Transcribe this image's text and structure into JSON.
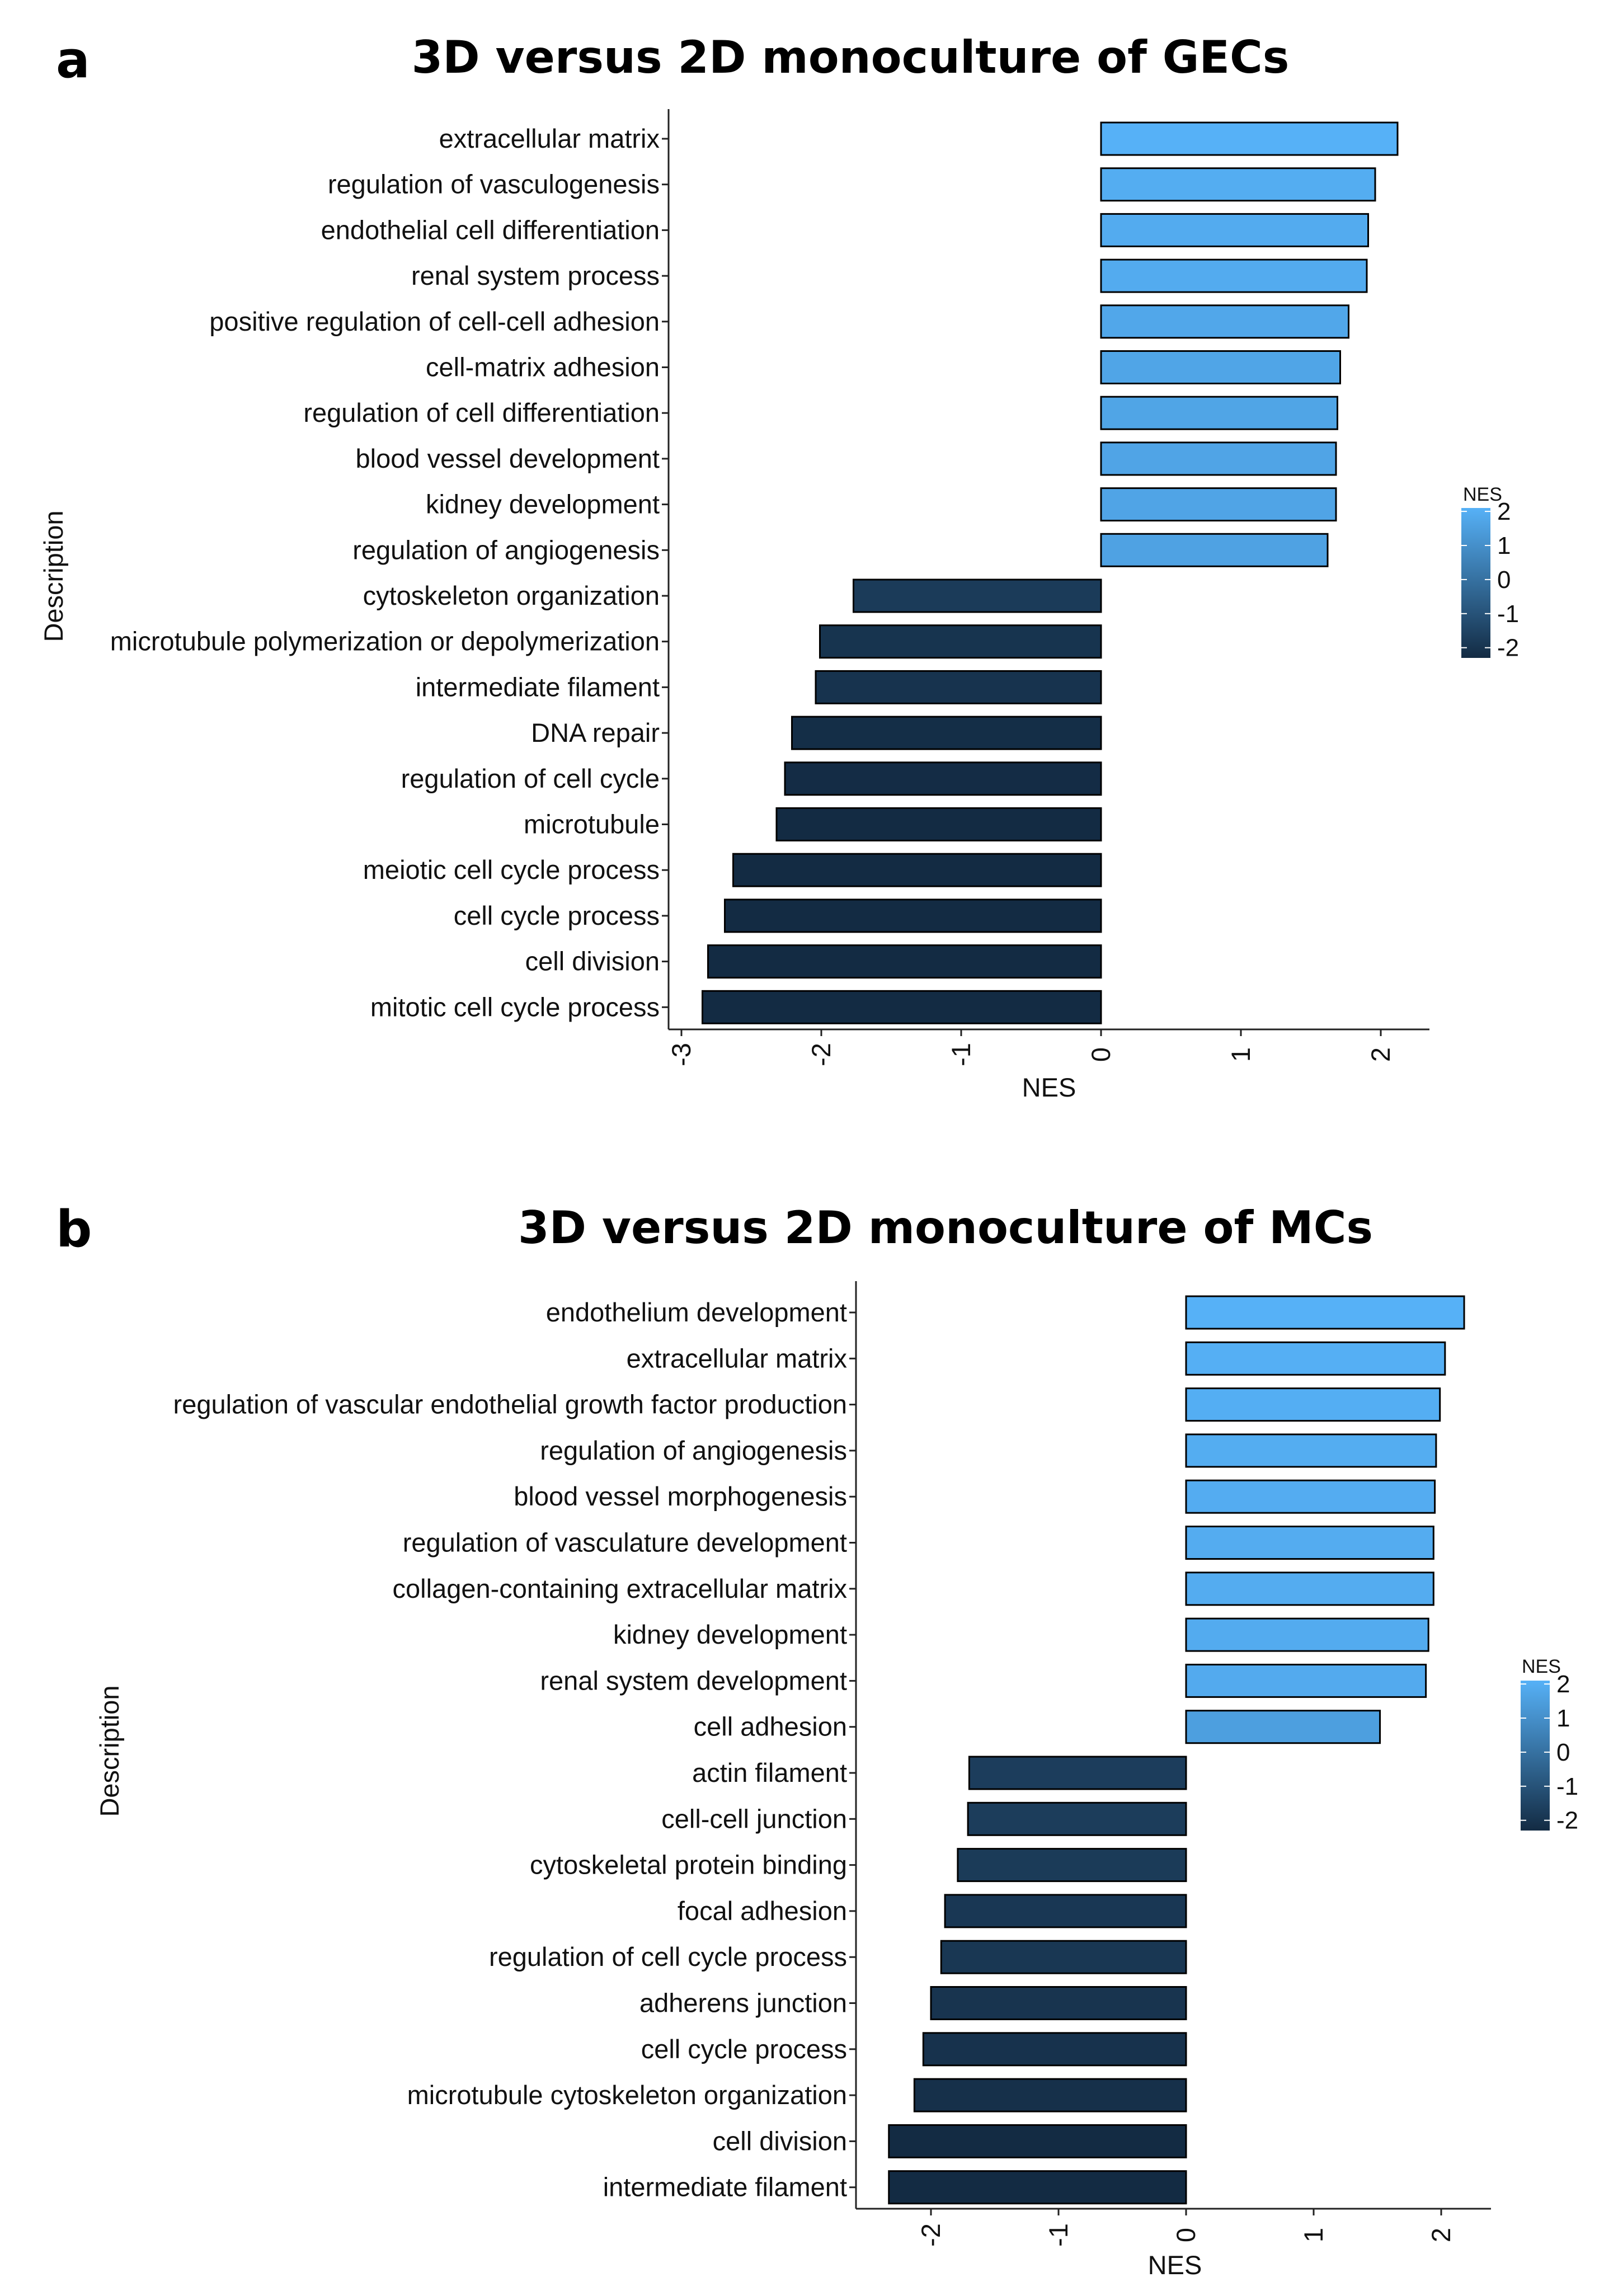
{
  "chart_data": [
    {
      "type": "bar",
      "orientation": "horizontal",
      "panel_label": "a",
      "title": "3D versus 2D monoculture of GECs",
      "xlabel": "NES",
      "ylabel": "Description",
      "xlim": [
        -3.2,
        2.35
      ],
      "xticks": [
        -3,
        -2,
        -1,
        0,
        1,
        2
      ],
      "xtick_labels": [
        "-3",
        "-2",
        "-1",
        "0",
        "1",
        "2"
      ],
      "grid": false,
      "categories": [
        "extracellular matrix",
        "regulation of vasculogenesis",
        "endothelial cell differentiation",
        "renal system process",
        "positive regulation of cell-cell adhesion",
        "cell-matrix adhesion",
        "regulation of cell differentiation",
        "blood vessel development",
        "kidney development",
        "regulation of angiogenesis",
        "cytoskeleton organization",
        "microtubule polymerization or depolymerization",
        "intermediate filament",
        "DNA repair",
        "regulation of cell cycle",
        "microtubule",
        "meiotic cell cycle process",
        "cell cycle process",
        "cell division",
        "mitotic cell cycle process"
      ],
      "values": [
        2.12,
        1.96,
        1.91,
        1.9,
        1.77,
        1.71,
        1.69,
        1.68,
        1.68,
        1.62,
        -1.77,
        -2.01,
        -2.04,
        -2.21,
        -2.26,
        -2.32,
        -2.63,
        -2.69,
        -2.81,
        -2.85
      ],
      "legend": {
        "title": "NES",
        "labels": [
          "2",
          "1",
          "0",
          "-1",
          "-2"
        ],
        "range": [
          -2.3,
          2.1
        ],
        "position": "right",
        "color_low": "#132b43",
        "color_high": "#56b1f7"
      }
    },
    {
      "type": "bar",
      "orientation": "horizontal",
      "panel_label": "b",
      "title": "3D versus 2D monoculture of MCs",
      "xlabel": "NES",
      "ylabel": "Description",
      "xlim": [
        -2.6,
        2.4
      ],
      "xticks": [
        -2,
        -1,
        0,
        1,
        2
      ],
      "xtick_labels": [
        "-2",
        "-1",
        "0",
        "1",
        "2"
      ],
      "grid": false,
      "categories": [
        "endothelium development",
        "extracellular matrix",
        "regulation of vascular endothelial growth factor production",
        "regulation of angiogenesis",
        "blood vessel morphogenesis",
        "regulation of vasculature development",
        "collagen-containing extracellular matrix",
        "kidney development",
        "renal system development",
        "cell adhesion",
        "actin filament",
        "cell-cell junction",
        "cytoskeletal protein binding",
        "focal adhesion",
        "regulation of cell cycle process",
        "adherens junction",
        "cell cycle process",
        "microtubule cytoskeleton organization",
        "cell division",
        "intermediate filament"
      ],
      "values": [
        2.18,
        2.03,
        1.99,
        1.96,
        1.95,
        1.94,
        1.94,
        1.9,
        1.88,
        1.52,
        -1.7,
        -1.71,
        -1.79,
        -1.89,
        -1.92,
        -2.0,
        -2.06,
        -2.13,
        -2.33,
        -2.33
      ],
      "legend": {
        "title": "NES",
        "labels": [
          "2",
          "1",
          "0",
          "-1",
          "-2"
        ],
        "range": [
          -2.3,
          2.1
        ],
        "position": "right",
        "color_low": "#132b43",
        "color_high": "#56b1f7"
      }
    }
  ]
}
